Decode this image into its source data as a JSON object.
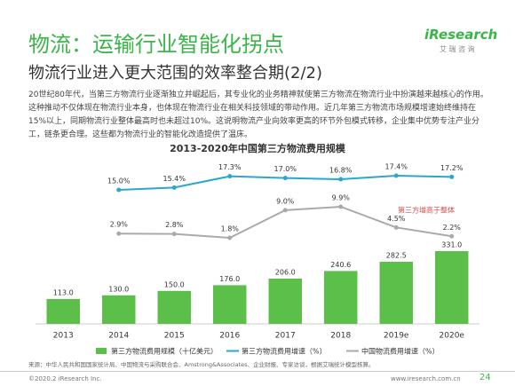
{
  "header": {
    "title": "物流：运输行业智能化拐点",
    "subtitle": "物流行业进入更大范围的效率整合期(2/2)",
    "logo": "iResearch",
    "logo_sub": "艾 瑞 咨 询"
  },
  "body": "20世纪80年代，当第三方物流行业逐渐独立并崛起后，其专业化的业务精神就使第三方物流在物流行业中扮演越来越核心的作用。这种推动不仅体现在物流行业本身，也体现在物流行业在相关科技领域的带动作用。近几年第三方物流市场规模增速始终维持在15%以上，同期物流行业整体最高时也未超过10%。这说明物流产业向效率更高的环节外包模式转移，企业集中优势专注产业分工，链条更合理。这些都为物流行业的智能化改造提供了温床。",
  "chart_data": {
    "type": "bar",
    "title": "2013-2020年中国第三方物流费用规模",
    "categories": [
      "2013",
      "2014",
      "2015",
      "2016",
      "2017",
      "2018",
      "2019e",
      "2020e"
    ],
    "series": [
      {
        "name": "第三方物流费用规模（十亿美元）",
        "type": "bar",
        "color": "#5cbf4a",
        "values": [
          113,
          130,
          150,
          176,
          206,
          240.6,
          282.5,
          331
        ],
        "value_labels": [
          "113.0",
          "130.0",
          "150.0",
          "176.0",
          "206.0",
          "240.6",
          "282.5",
          "331.0"
        ]
      },
      {
        "name": "第三方物流费用增速（%）",
        "type": "line",
        "color": "#2aa7cc",
        "values": [
          null,
          15.0,
          15.4,
          17.3,
          17.0,
          16.8,
          17.4,
          17.2
        ],
        "value_labels": [
          null,
          "15.0%",
          "15.4%",
          "17.3%",
          "17.0%",
          "16.8%",
          "17.4%",
          "17.2%"
        ]
      },
      {
        "name": "中国物流费用增速（%）",
        "type": "line",
        "color": "#aaaaaa",
        "values": [
          null,
          2.9,
          2.8,
          1.8,
          9.0,
          9.9,
          4.5,
          2.2
        ],
        "value_labels": [
          null,
          "2.9%",
          "2.8%",
          "1.8%",
          "9.0%",
          "9.9%",
          "4.5%",
          "2.2%"
        ]
      }
    ],
    "annotation": "第三方增高于整体"
  },
  "footer": {
    "source": "来源：中华人民共和国国家统计局、中国物流与采购联合会、Amstrong&Associates、企业财报、专家访谈，根据艾瑞统计模型核算。",
    "copyright": "©2020.2 iResearch Inc.",
    "website": "www.iresearch.com.cn",
    "page": "24"
  }
}
